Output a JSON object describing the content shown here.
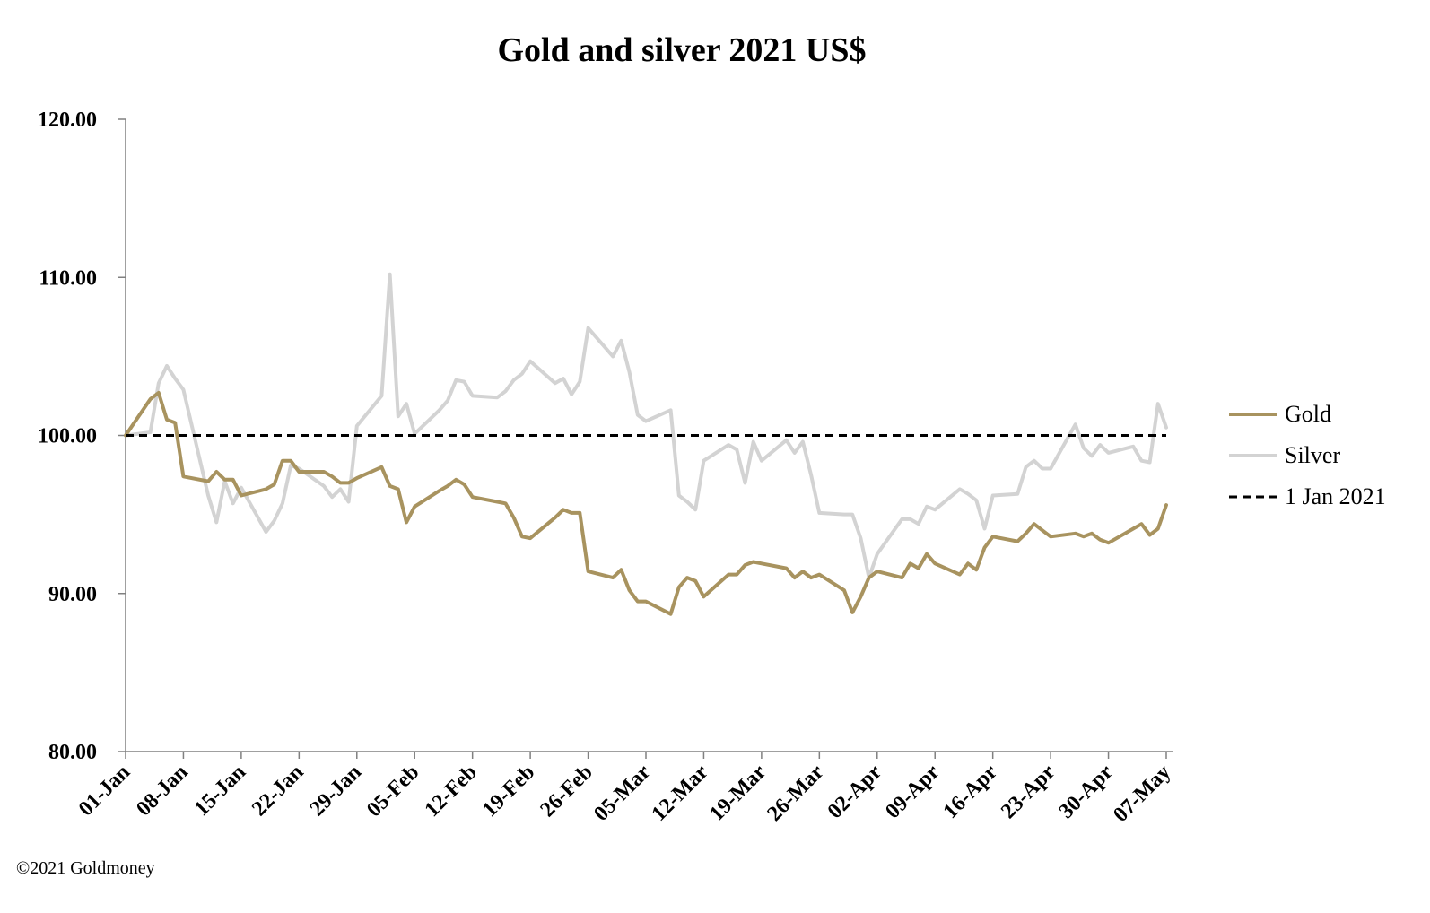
{
  "chart_data": {
    "type": "line",
    "title": "Gold and silver 2021  US$",
    "xlabel": "",
    "ylabel": "",
    "ylim": [
      80,
      120
    ],
    "yticks": [
      "80.00",
      "90.00",
      "100.00",
      "110.00",
      "120.00"
    ],
    "ytick_values": [
      80,
      90,
      100,
      110,
      120
    ],
    "xlim": [
      "2021-01-01",
      "2021-05-07"
    ],
    "xticks": [
      "01-Jan",
      "08-Jan",
      "15-Jan",
      "22-Jan",
      "29-Jan",
      "05-Feb",
      "12-Feb",
      "19-Feb",
      "26-Feb",
      "05-Mar",
      "12-Mar",
      "19-Mar",
      "26-Mar",
      "02-Apr",
      "09-Apr",
      "16-Apr",
      "23-Apr",
      "30-Apr",
      "07-May"
    ],
    "xtick_dates": [
      "2021-01-01",
      "2021-01-08",
      "2021-01-15",
      "2021-01-22",
      "2021-01-29",
      "2021-02-05",
      "2021-02-12",
      "2021-02-19",
      "2021-02-26",
      "2021-03-05",
      "2021-03-12",
      "2021-03-19",
      "2021-03-26",
      "2021-04-02",
      "2021-04-09",
      "2021-04-16",
      "2021-04-23",
      "2021-04-30",
      "2021-05-07"
    ],
    "grid": false,
    "legend": "right",
    "series": [
      {
        "name": "Gold",
        "color": "#a8935f",
        "points": [
          [
            "2021-01-01",
            100.0
          ],
          [
            "2021-01-04",
            102.3
          ],
          [
            "2021-01-05",
            102.7
          ],
          [
            "2021-01-06",
            101.0
          ],
          [
            "2021-01-07",
            100.8
          ],
          [
            "2021-01-08",
            97.4
          ],
          [
            "2021-01-11",
            97.1
          ],
          [
            "2021-01-12",
            97.7
          ],
          [
            "2021-01-13",
            97.2
          ],
          [
            "2021-01-14",
            97.2
          ],
          [
            "2021-01-15",
            96.2
          ],
          [
            "2021-01-18",
            96.6
          ],
          [
            "2021-01-19",
            96.9
          ],
          [
            "2021-01-20",
            98.4
          ],
          [
            "2021-01-21",
            98.4
          ],
          [
            "2021-01-22",
            97.7
          ],
          [
            "2021-01-25",
            97.7
          ],
          [
            "2021-01-26",
            97.4
          ],
          [
            "2021-01-27",
            97.0
          ],
          [
            "2021-01-28",
            97.0
          ],
          [
            "2021-01-29",
            97.3
          ],
          [
            "2021-02-01",
            98.0
          ],
          [
            "2021-02-02",
            96.8
          ],
          [
            "2021-02-03",
            96.6
          ],
          [
            "2021-02-04",
            94.5
          ],
          [
            "2021-02-05",
            95.5
          ],
          [
            "2021-02-08",
            96.5
          ],
          [
            "2021-02-09",
            96.8
          ],
          [
            "2021-02-10",
            97.2
          ],
          [
            "2021-02-11",
            96.9
          ],
          [
            "2021-02-12",
            96.1
          ],
          [
            "2021-02-15",
            95.8
          ],
          [
            "2021-02-16",
            95.7
          ],
          [
            "2021-02-17",
            94.8
          ],
          [
            "2021-02-18",
            93.6
          ],
          [
            "2021-02-19",
            93.5
          ],
          [
            "2021-02-22",
            94.8
          ],
          [
            "2021-02-23",
            95.3
          ],
          [
            "2021-02-24",
            95.1
          ],
          [
            "2021-02-25",
            95.1
          ],
          [
            "2021-02-26",
            91.4
          ],
          [
            "2021-03-01",
            91.0
          ],
          [
            "2021-03-02",
            91.5
          ],
          [
            "2021-03-03",
            90.2
          ],
          [
            "2021-03-04",
            89.5
          ],
          [
            "2021-03-05",
            89.5
          ],
          [
            "2021-03-08",
            88.7
          ],
          [
            "2021-03-09",
            90.4
          ],
          [
            "2021-03-10",
            91.0
          ],
          [
            "2021-03-11",
            90.8
          ],
          [
            "2021-03-12",
            89.8
          ],
          [
            "2021-03-15",
            91.2
          ],
          [
            "2021-03-16",
            91.2
          ],
          [
            "2021-03-17",
            91.8
          ],
          [
            "2021-03-18",
            92.0
          ],
          [
            "2021-03-19",
            91.9
          ],
          [
            "2021-03-22",
            91.6
          ],
          [
            "2021-03-23",
            91.0
          ],
          [
            "2021-03-24",
            91.4
          ],
          [
            "2021-03-25",
            91.0
          ],
          [
            "2021-03-26",
            91.2
          ],
          [
            "2021-03-29",
            90.2
          ],
          [
            "2021-03-30",
            88.8
          ],
          [
            "2021-03-31",
            89.8
          ],
          [
            "2021-04-01",
            91.0
          ],
          [
            "2021-04-02",
            91.4
          ],
          [
            "2021-04-05",
            91.0
          ],
          [
            "2021-04-06",
            91.9
          ],
          [
            "2021-04-07",
            91.6
          ],
          [
            "2021-04-08",
            92.5
          ],
          [
            "2021-04-09",
            91.9
          ],
          [
            "2021-04-12",
            91.2
          ],
          [
            "2021-04-13",
            91.9
          ],
          [
            "2021-04-14",
            91.5
          ],
          [
            "2021-04-15",
            92.9
          ],
          [
            "2021-04-16",
            93.6
          ],
          [
            "2021-04-19",
            93.3
          ],
          [
            "2021-04-20",
            93.8
          ],
          [
            "2021-04-21",
            94.4
          ],
          [
            "2021-04-22",
            94.0
          ],
          [
            "2021-04-23",
            93.6
          ],
          [
            "2021-04-26",
            93.8
          ],
          [
            "2021-04-27",
            93.6
          ],
          [
            "2021-04-28",
            93.8
          ],
          [
            "2021-04-29",
            93.4
          ],
          [
            "2021-04-30",
            93.2
          ],
          [
            "2021-05-03",
            94.1
          ],
          [
            "2021-05-04",
            94.4
          ],
          [
            "2021-05-05",
            93.7
          ],
          [
            "2021-05-06",
            94.1
          ],
          [
            "2021-05-07",
            95.6
          ]
        ]
      },
      {
        "name": "Silver",
        "color": "#d3d3d3",
        "points": [
          [
            "2021-01-01",
            100.0
          ],
          [
            "2021-01-04",
            100.2
          ],
          [
            "2021-01-05",
            103.3
          ],
          [
            "2021-01-06",
            104.4
          ],
          [
            "2021-01-07",
            103.6
          ],
          [
            "2021-01-08",
            102.9
          ],
          [
            "2021-01-11",
            96.2
          ],
          [
            "2021-01-12",
            94.5
          ],
          [
            "2021-01-13",
            97.1
          ],
          [
            "2021-01-14",
            95.7
          ],
          [
            "2021-01-15",
            96.7
          ],
          [
            "2021-01-18",
            93.9
          ],
          [
            "2021-01-19",
            94.6
          ],
          [
            "2021-01-20",
            95.7
          ],
          [
            "2021-01-21",
            98.1
          ],
          [
            "2021-01-22",
            97.9
          ],
          [
            "2021-01-25",
            96.8
          ],
          [
            "2021-01-26",
            96.1
          ],
          [
            "2021-01-27",
            96.6
          ],
          [
            "2021-01-28",
            95.8
          ],
          [
            "2021-01-29",
            100.6
          ],
          [
            "2021-02-01",
            102.5
          ],
          [
            "2021-02-02",
            110.2
          ],
          [
            "2021-02-03",
            101.2
          ],
          [
            "2021-02-04",
            102.0
          ],
          [
            "2021-02-05",
            100.1
          ],
          [
            "2021-02-08",
            101.6
          ],
          [
            "2021-02-09",
            102.2
          ],
          [
            "2021-02-10",
            103.5
          ],
          [
            "2021-02-11",
            103.4
          ],
          [
            "2021-02-12",
            102.5
          ],
          [
            "2021-02-15",
            102.4
          ],
          [
            "2021-02-16",
            102.8
          ],
          [
            "2021-02-17",
            103.5
          ],
          [
            "2021-02-18",
            103.9
          ],
          [
            "2021-02-19",
            104.7
          ],
          [
            "2021-02-22",
            103.3
          ],
          [
            "2021-02-23",
            103.6
          ],
          [
            "2021-02-24",
            102.6
          ],
          [
            "2021-02-25",
            103.4
          ],
          [
            "2021-02-26",
            106.8
          ],
          [
            "2021-03-01",
            105.0
          ],
          [
            "2021-03-02",
            106.0
          ],
          [
            "2021-03-03",
            104.0
          ],
          [
            "2021-03-04",
            101.3
          ],
          [
            "2021-03-05",
            100.9
          ],
          [
            "2021-03-08",
            101.6
          ],
          [
            "2021-03-09",
            96.2
          ],
          [
            "2021-03-10",
            95.8
          ],
          [
            "2021-03-11",
            95.3
          ],
          [
            "2021-03-12",
            98.4
          ],
          [
            "2021-03-15",
            99.4
          ],
          [
            "2021-03-16",
            99.1
          ],
          [
            "2021-03-17",
            97.0
          ],
          [
            "2021-03-18",
            99.6
          ],
          [
            "2021-03-19",
            98.4
          ],
          [
            "2021-03-22",
            99.7
          ],
          [
            "2021-03-23",
            98.9
          ],
          [
            "2021-03-24",
            99.6
          ],
          [
            "2021-03-25",
            97.5
          ],
          [
            "2021-03-26",
            95.1
          ],
          [
            "2021-03-29",
            95.0
          ],
          [
            "2021-03-30",
            95.0
          ],
          [
            "2021-03-31",
            93.5
          ],
          [
            "2021-04-01",
            91.0
          ],
          [
            "2021-04-02",
            92.5
          ],
          [
            "2021-04-05",
            94.7
          ],
          [
            "2021-04-06",
            94.7
          ],
          [
            "2021-04-07",
            94.4
          ],
          [
            "2021-04-08",
            95.5
          ],
          [
            "2021-04-09",
            95.3
          ],
          [
            "2021-04-12",
            96.6
          ],
          [
            "2021-04-13",
            96.3
          ],
          [
            "2021-04-14",
            95.9
          ],
          [
            "2021-04-15",
            94.1
          ],
          [
            "2021-04-16",
            96.2
          ],
          [
            "2021-04-19",
            96.3
          ],
          [
            "2021-04-20",
            98.0
          ],
          [
            "2021-04-21",
            98.4
          ],
          [
            "2021-04-22",
            97.9
          ],
          [
            "2021-04-23",
            97.9
          ],
          [
            "2021-04-26",
            100.7
          ],
          [
            "2021-04-27",
            99.2
          ],
          [
            "2021-04-28",
            98.7
          ],
          [
            "2021-04-29",
            99.4
          ],
          [
            "2021-04-30",
            98.9
          ],
          [
            "2021-05-03",
            99.3
          ],
          [
            "2021-05-04",
            98.4
          ],
          [
            "2021-05-05",
            98.3
          ],
          [
            "2021-05-06",
            102.0
          ],
          [
            "2021-05-07",
            100.5
          ]
        ]
      },
      {
        "name": "1 Jan 2021",
        "color": "#000000",
        "style": "dashed",
        "points": [
          [
            "2021-01-01",
            100.0
          ],
          [
            "2021-05-07",
            100.0
          ]
        ]
      }
    ]
  },
  "credit": "©2021 Goldmoney"
}
